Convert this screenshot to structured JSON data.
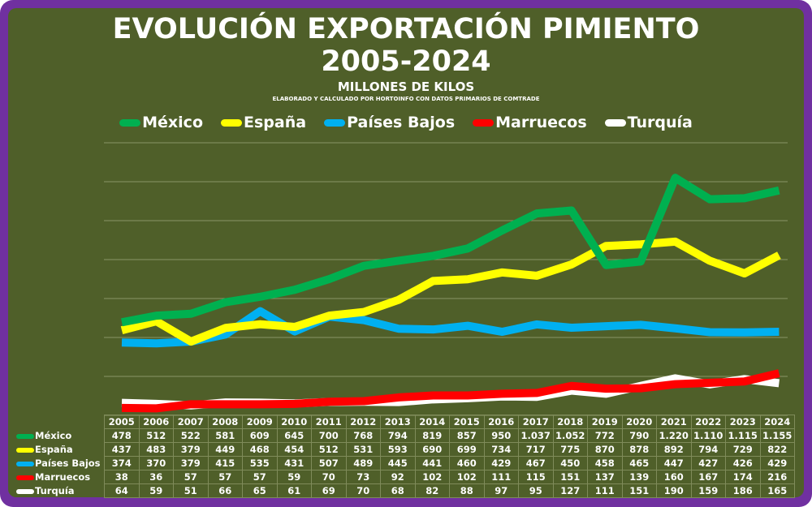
{
  "chart_data": {
    "type": "line",
    "title": "EVOLUCIÓN EXPORTACIÓN PIMIENTO",
    "title_line2": "2005-2024",
    "subtitle": "MILLONES DE KILOS",
    "source_note": "ELABORADO Y CALCULADO POR HORTOINFO CON DATOS PRIMARIOS DE COMTRADE",
    "xlabel": "",
    "ylabel": "",
    "ylim": [
      0,
      1400
    ],
    "grid": true,
    "legend_position": "top",
    "x": [
      "2005",
      "2006",
      "2007",
      "2008",
      "2009",
      "2010",
      "2011",
      "2012",
      "2013",
      "2014",
      "2015",
      "2016",
      "2017",
      "2018",
      "2019",
      "2020",
      "2021",
      "2022",
      "2023",
      "2024"
    ],
    "series": [
      {
        "name": "México",
        "color": "#00b050",
        "values": [
          478,
          512,
          522,
          581,
          609,
          645,
          700,
          768,
          794,
          819,
          857,
          950,
          1037,
          1052,
          772,
          790,
          1220,
          1110,
          1115,
          1155
        ],
        "labels": [
          "478",
          "512",
          "522",
          "581",
          "609",
          "645",
          "700",
          "768",
          "794",
          "819",
          "857",
          "950",
          "1.037",
          "1.052",
          "772",
          "790",
          "1.220",
          "1.110",
          "1.115",
          "1.155"
        ]
      },
      {
        "name": "España",
        "color": "#ffff00",
        "values": [
          437,
          483,
          379,
          449,
          468,
          454,
          512,
          531,
          593,
          690,
          699,
          734,
          717,
          775,
          870,
          878,
          892,
          794,
          729,
          822
        ],
        "labels": [
          "437",
          "483",
          "379",
          "449",
          "468",
          "454",
          "512",
          "531",
          "593",
          "690",
          "699",
          "734",
          "717",
          "775",
          "870",
          "878",
          "892",
          "794",
          "729",
          "822"
        ]
      },
      {
        "name": "Países Bajos",
        "color": "#00b0f0",
        "values": [
          374,
          370,
          379,
          415,
          535,
          431,
          507,
          489,
          445,
          441,
          460,
          429,
          467,
          450,
          458,
          465,
          447,
          427,
          426,
          429
        ],
        "labels": [
          "374",
          "370",
          "379",
          "415",
          "535",
          "431",
          "507",
          "489",
          "445",
          "441",
          "460",
          "429",
          "467",
          "450",
          "458",
          "465",
          "447",
          "427",
          "426",
          "429"
        ]
      },
      {
        "name": "Marruecos",
        "color": "#ff0000",
        "values": [
          38,
          36,
          57,
          57,
          57,
          59,
          70,
          73,
          92,
          102,
          102,
          111,
          115,
          151,
          137,
          139,
          160,
          167,
          174,
          216
        ],
        "labels": [
          "38",
          "36",
          "57",
          "57",
          "57",
          "59",
          "70",
          "73",
          "92",
          "102",
          "102",
          "111",
          "115",
          "151",
          "137",
          "139",
          "160",
          "167",
          "174",
          "216"
        ]
      },
      {
        "name": "Turquía",
        "color": "#ffffff",
        "values": [
          64,
          59,
          51,
          66,
          65,
          61,
          69,
          70,
          68,
          82,
          88,
          97,
          95,
          127,
          111,
          151,
          190,
          159,
          186,
          165
        ],
        "labels": [
          "64",
          "59",
          "51",
          "66",
          "65",
          "61",
          "69",
          "70",
          "68",
          "82",
          "88",
          "97",
          "95",
          "127",
          "111",
          "151",
          "190",
          "159",
          "186",
          "165"
        ]
      }
    ]
  }
}
